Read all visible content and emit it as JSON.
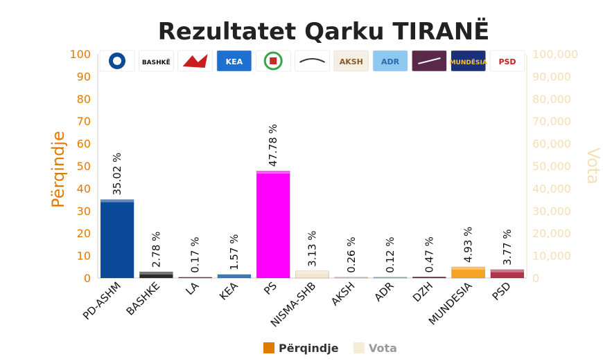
{
  "chart_data": {
    "type": "bar",
    "title": "Rezultatet Qarku TIRANË",
    "categories": [
      "PD-ASHM",
      "BASHKE",
      "LA",
      "KEA",
      "PS",
      "NISMA-SHB",
      "AKSH",
      "ADR",
      "DZH",
      "MUNDESIA",
      "PSD"
    ],
    "series": [
      {
        "name": "Përqindje",
        "values": [
          35.02,
          2.78,
          0.17,
          1.57,
          47.78,
          3.13,
          0.26,
          0.12,
          0.47,
          4.93,
          3.77
        ],
        "labels": [
          "35.02 %",
          "2.78 %",
          "0.17 %",
          "1.57 %",
          "47.78 %",
          "3.13 %",
          "0.26 %",
          "0.12 %",
          "0.47 %",
          "4.93 %",
          "3.77 %"
        ]
      },
      {
        "name": "Vota"
      }
    ],
    "bar_colors": [
      "#0b4a98",
      "#2b2b2b",
      "#c81e1e",
      "#2f7fc6",
      "#ff00ff",
      "#f2e6cc",
      "#e8c88a",
      "#7fb0e0",
      "#6a1f3e",
      "#f5a425",
      "#b0344c"
    ],
    "party_logos": [
      {
        "name": "pd-ashm-logo",
        "bg": "#ffffff",
        "fg": "#0b4a98",
        "text": ""
      },
      {
        "name": "bashke-logo",
        "bg": "#ffffff",
        "fg": "#111111",
        "text": "BASHKË"
      },
      {
        "name": "la-logo",
        "bg": "#ffffff",
        "fg": "#c81e1e",
        "text": ""
      },
      {
        "name": "kea-logo",
        "bg": "#1d6fd0",
        "fg": "#ffffff",
        "text": "KEA"
      },
      {
        "name": "ps-logo",
        "bg": "#ffffff",
        "fg": "#3aa24a",
        "text": ""
      },
      {
        "name": "nisma-shb-logo",
        "bg": "#ffffff",
        "fg": "#333333",
        "text": ""
      },
      {
        "name": "aksh-logo",
        "bg": "#f3efe2",
        "fg": "#8a5a2b",
        "text": "AKSH"
      },
      {
        "name": "adr-logo",
        "bg": "#8ec8f0",
        "fg": "#2d6aa8",
        "text": "ADR"
      },
      {
        "name": "dzh-logo",
        "bg": "#5a2848",
        "fg": "#ffffff",
        "text": ""
      },
      {
        "name": "mundesia-logo",
        "bg": "#1c2f7a",
        "fg": "#f5c242",
        "text": "MUNDËSIA"
      },
      {
        "name": "psd-logo",
        "bg": "#ffffff",
        "fg": "#c81e1e",
        "text": "PSD"
      }
    ],
    "y_left": {
      "label": "Përqindje",
      "ylim": [
        0,
        100
      ],
      "ticks": [
        0,
        10,
        20,
        30,
        40,
        50,
        60,
        70,
        80,
        90,
        100
      ],
      "color": "#e07b00"
    },
    "y_right": {
      "label": "Vota",
      "ylim": [
        0,
        100000
      ],
      "ticks": [
        "0",
        "10,000",
        "20,000",
        "30,000",
        "40,000",
        "50,000",
        "60,000",
        "70,000",
        "80,000",
        "90,000",
        "100,000"
      ],
      "color": "#f5deb3"
    },
    "legend": {
      "position": "bottom-center",
      "items": [
        {
          "label": "Përqindje",
          "color": "#e07b00"
        },
        {
          "label": "Vota",
          "color": "#f7ecd7"
        }
      ]
    },
    "grid": false
  }
}
